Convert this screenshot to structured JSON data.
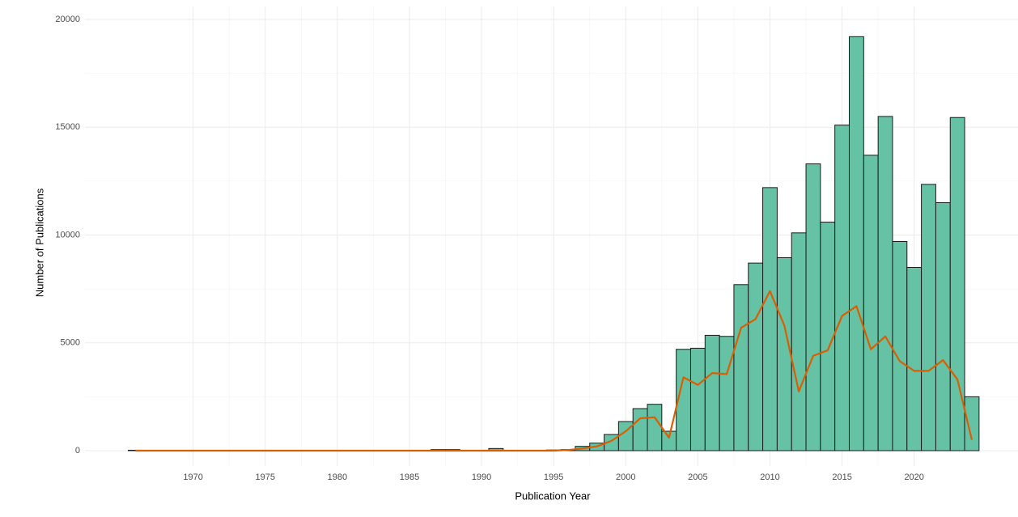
{
  "chart_data": {
    "type": "bar",
    "x_label": "Publication Year",
    "y_label": "Number of Publications",
    "x": [
      1966,
      1967,
      1968,
      1969,
      1970,
      1971,
      1972,
      1973,
      1974,
      1975,
      1976,
      1977,
      1978,
      1979,
      1980,
      1981,
      1982,
      1983,
      1984,
      1985,
      1986,
      1987,
      1988,
      1989,
      1990,
      1991,
      1992,
      1993,
      1994,
      1995,
      1996,
      1997,
      1998,
      1999,
      2000,
      2001,
      2002,
      2003,
      2004,
      2005,
      2006,
      2007,
      2008,
      2009,
      2010,
      2011,
      2012,
      2013,
      2014,
      2015,
      2016,
      2017,
      2018,
      2019,
      2020,
      2021,
      2022,
      2023,
      2024
    ],
    "series": [
      {
        "type": "bar",
        "color": "#66c2a5",
        "values": [
          20,
          0,
          0,
          0,
          0,
          0,
          0,
          0,
          0,
          0,
          0,
          0,
          0,
          0,
          0,
          0,
          0,
          0,
          0,
          0,
          0,
          50,
          50,
          0,
          0,
          100,
          0,
          0,
          0,
          30,
          50,
          200,
          350,
          750,
          1350,
          1950,
          2150,
          900,
          4700,
          4750,
          5350,
          5300,
          7700,
          8700,
          12200,
          8950,
          10100,
          13300,
          10600,
          15100,
          19200,
          13700,
          15500,
          9700,
          8500,
          12350,
          11500,
          15450,
          2500
        ]
      },
      {
        "type": "line",
        "color": "#d95f02",
        "values": [
          0,
          0,
          0,
          0,
          0,
          0,
          0,
          0,
          0,
          0,
          0,
          0,
          0,
          0,
          0,
          0,
          0,
          0,
          0,
          0,
          0,
          0,
          0,
          0,
          0,
          0,
          0,
          0,
          0,
          0,
          30,
          100,
          200,
          450,
          900,
          1500,
          1550,
          600,
          3400,
          3050,
          3600,
          3550,
          5700,
          6100,
          7400,
          5800,
          2750,
          4400,
          4650,
          6250,
          6700,
          4700,
          5300,
          4150,
          3700,
          3700,
          4200,
          3300,
          500
        ]
      }
    ],
    "xlim": [
      1962.5,
      2027.2
    ],
    "ylim": [
      -713,
      20600
    ],
    "xticks": [
      1970,
      1975,
      1980,
      1985,
      1990,
      1995,
      2000,
      2005,
      2010,
      2015,
      2020
    ],
    "yticks": [
      0,
      5000,
      10000,
      15000,
      20000
    ],
    "grid": true,
    "minor_grid": true
  }
}
